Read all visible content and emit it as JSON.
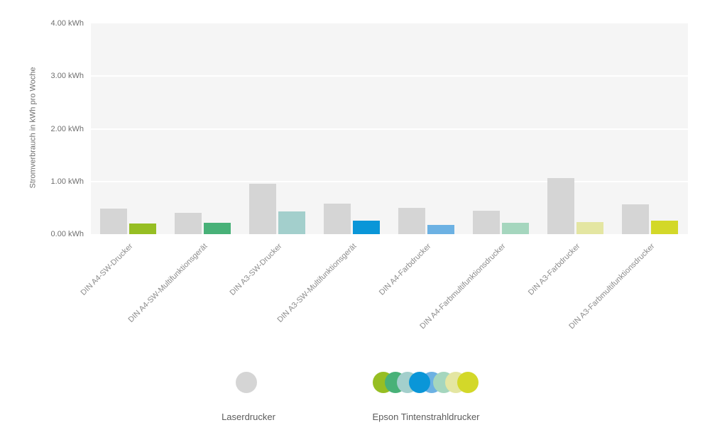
{
  "chart_data": {
    "type": "bar",
    "title": "",
    "xlabel": "",
    "ylabel": "Stromverbrauch in kWh pro Woche",
    "unit": "kWh",
    "ylim": [
      0,
      4
    ],
    "ytick_labels": [
      "0.00 kWh",
      "1.00 kWh",
      "2.00 kWh",
      "3.00 kWh",
      "4.00 kWh"
    ],
    "grid": true,
    "legend_position": "bottom",
    "categories": [
      "DIN A4-SW-Drucker",
      "DIN A4-SW-Multifunktionsgerät",
      "DIN A3-SW-Drucker",
      "DIN A3-SW-Multifunktionsgerät",
      "DIN A4-Farbdrucker",
      "DIN A4-Farbmultifunktionsdrucker",
      "DIN A3-Farbdrucker",
      "DIN A3-Farbmultifunktionsdrucker"
    ],
    "series": [
      {
        "name": "Laserdrucker",
        "color": "#d5d5d5",
        "values": [
          0.48,
          0.41,
          0.95,
          0.58,
          0.5,
          0.45,
          1.07,
          0.57
        ]
      },
      {
        "name": "Epson Tintenstrahldrucker",
        "values": [
          0.2,
          0.21,
          0.43,
          0.25,
          0.18,
          0.21,
          0.23,
          0.25
        ],
        "colors": [
          "#96be23",
          "#48b178",
          "#a3cfcc",
          "#0a96d8",
          "#6cb1e3",
          "#a5d6be",
          "#e4e6a2",
          "#d3d829"
        ]
      }
    ]
  },
  "style": {
    "plot_bg": "#f5f5f5",
    "gridline_color": "#ffffff",
    "tick_text_color": "#6f6f6f",
    "xlabel_text_color": "#8c8c8c",
    "legend_text_color": "#5c5c5c",
    "laser_color": "#d5d5d5"
  }
}
